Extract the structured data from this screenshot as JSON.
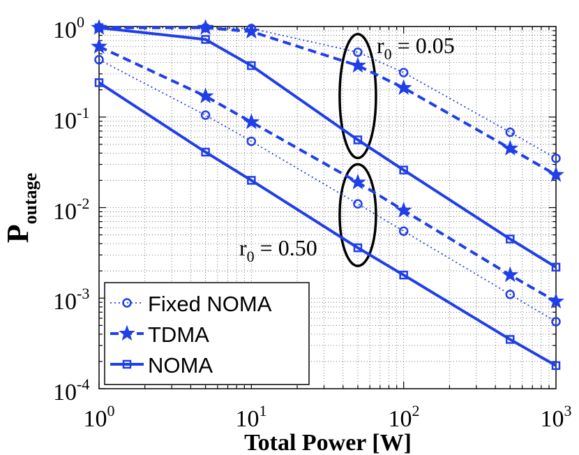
{
  "chart_data": {
    "type": "line",
    "xscale": "log",
    "yscale": "log",
    "xlim": [
      1,
      1000
    ],
    "ylim": [
      0.0001,
      1
    ],
    "grid": true,
    "xlabel": "Total Power [W]",
    "ylabel_main": "P",
    "ylabel_sub": "outage",
    "x_ticks": [
      {
        "base": "10",
        "exp": "0",
        "value": 1
      },
      {
        "base": "10",
        "exp": "1",
        "value": 10
      },
      {
        "base": "10",
        "exp": "2",
        "value": 100
      },
      {
        "base": "10",
        "exp": "3",
        "value": 1000
      }
    ],
    "y_ticks": [
      {
        "base": "10",
        "exp": "0",
        "value": 1
      },
      {
        "base": "10",
        "exp": "-1",
        "value": 0.1
      },
      {
        "base": "10",
        "exp": "-2",
        "value": 0.01
      },
      {
        "base": "10",
        "exp": "-3",
        "value": 0.001
      },
      {
        "base": "10",
        "exp": "-4",
        "value": 0.0001
      }
    ],
    "x": [
      1,
      5,
      10,
      50,
      100,
      500,
      1000
    ],
    "color": "#1f3fe8",
    "series": [
      {
        "name": "Fixed NOMA",
        "style": "dotted",
        "marker": "circle",
        "r0": "0.05",
        "values": [
          0.97,
          0.97,
          0.95,
          0.52,
          0.31,
          0.068,
          0.035
        ]
      },
      {
        "name": "TDMA",
        "style": "dashed",
        "marker": "star",
        "r0": "0.05",
        "values": [
          0.97,
          0.97,
          0.88,
          0.37,
          0.21,
          0.045,
          0.023
        ]
      },
      {
        "name": "NOMA",
        "style": "solid",
        "marker": "square",
        "r0": "0.05",
        "values": [
          0.97,
          0.72,
          0.37,
          0.056,
          0.026,
          0.0045,
          0.0022
        ]
      },
      {
        "name": "Fixed NOMA",
        "style": "dotted",
        "marker": "circle",
        "r0": "0.50",
        "values": [
          0.43,
          0.105,
          0.054,
          0.011,
          0.0055,
          0.0011,
          0.00055
        ]
      },
      {
        "name": "TDMA",
        "style": "dashed",
        "marker": "star",
        "r0": "0.50",
        "values": [
          0.6,
          0.17,
          0.088,
          0.019,
          0.0093,
          0.0018,
          0.00092
        ]
      },
      {
        "name": "NOMA",
        "style": "solid",
        "marker": "square",
        "r0": "0.50",
        "values": [
          0.24,
          0.041,
          0.02,
          0.0036,
          0.0018,
          0.00035,
          0.00018
        ]
      }
    ],
    "annotations": [
      {
        "id": "r005",
        "main": "r",
        "sub": "0",
        "rest": " = 0.05",
        "ellipse_x": 50
      },
      {
        "id": "r050",
        "main": "r",
        "sub": "0",
        "rest": " = 0.50",
        "ellipse_x": 50
      }
    ],
    "legend": {
      "position": "bottom-left",
      "entries": [
        {
          "label": "Fixed NOMA",
          "style": "dotted",
          "marker": "circle"
        },
        {
          "label": "TDMA",
          "style": "dashed",
          "marker": "star"
        },
        {
          "label": "NOMA",
          "style": "solid",
          "marker": "square"
        }
      ]
    }
  }
}
